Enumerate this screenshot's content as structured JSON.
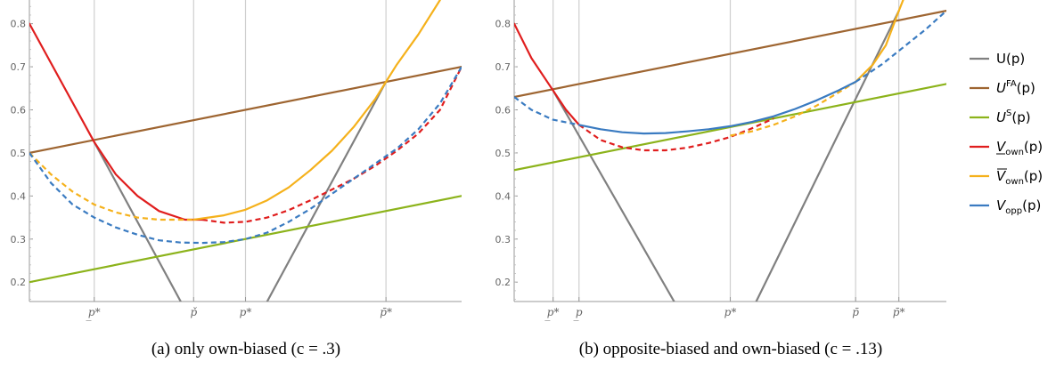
{
  "chart_data": [
    {
      "type": "line",
      "caption": "(a) only own-biased (c = .3)",
      "xlim": [
        0,
        1
      ],
      "ylim": [
        0.155,
        0.855
      ],
      "y_ticks": [
        0.2,
        0.3,
        0.4,
        0.5,
        0.6,
        0.7,
        0.8
      ],
      "x_ticks": [
        {
          "x": 0.15,
          "label": "p̲*"
        },
        {
          "x": 0.38,
          "label": "p̌"
        },
        {
          "x": 0.5,
          "label": "p*"
        },
        {
          "x": 0.825,
          "label": "p̄*"
        }
      ],
      "gridlines_x": [
        0.15,
        0.38,
        0.5,
        0.825
      ],
      "series": [
        {
          "name": "U(p)",
          "color": "#808080",
          "style": "solid",
          "segments": [
            [
              [
                0.15,
                0.525
              ],
              [
                0.35,
                0.155
              ]
            ],
            [
              [
                0.55,
                0.155
              ],
              [
                0.825,
                0.665
              ]
            ]
          ]
        },
        {
          "name": "U^FA(p)",
          "color": "#9e6531",
          "style": "solid",
          "segments": [
            [
              [
                0.0,
                0.5
              ],
              [
                1.0,
                0.7
              ]
            ]
          ]
        },
        {
          "name": "U^S(p)",
          "color": "#8cb31b",
          "style": "solid",
          "segments": [
            [
              [
                0.0,
                0.2
              ],
              [
                1.0,
                0.4
              ]
            ]
          ]
        },
        {
          "name": "V_own(p) lower",
          "color": "#e01e1e",
          "style": "solid",
          "segments": [
            [
              [
                0.0,
                0.8
              ],
              [
                0.15,
                0.525
              ],
              [
                0.2,
                0.45
              ],
              [
                0.25,
                0.4
              ],
              [
                0.3,
                0.365
              ],
              [
                0.36,
                0.345
              ],
              [
                0.4,
                0.345
              ]
            ]
          ]
        },
        {
          "name": "V_own(p) lower",
          "color": "#e01e1e",
          "style": "dashed",
          "segments": [
            [
              [
                0.4,
                0.345
              ],
              [
                0.45,
                0.338
              ],
              [
                0.5,
                0.34
              ],
              [
                0.55,
                0.35
              ],
              [
                0.6,
                0.367
              ],
              [
                0.65,
                0.39
              ],
              [
                0.7,
                0.415
              ],
              [
                0.75,
                0.44
              ],
              [
                0.8,
                0.47
              ],
              [
                0.85,
                0.505
              ],
              [
                0.9,
                0.545
              ],
              [
                0.95,
                0.6
              ],
              [
                1.0,
                0.7
              ]
            ]
          ]
        },
        {
          "name": "V_own(p) upper",
          "color": "#f5b11b",
          "style": "dashed",
          "segments": [
            [
              [
                0.0,
                0.5
              ],
              [
                0.05,
                0.45
              ],
              [
                0.1,
                0.41
              ],
              [
                0.15,
                0.38
              ],
              [
                0.2,
                0.362
              ],
              [
                0.25,
                0.35
              ],
              [
                0.3,
                0.345
              ],
              [
                0.38,
                0.345
              ]
            ]
          ]
        },
        {
          "name": "V_own(p) upper",
          "color": "#f5b11b",
          "style": "solid",
          "segments": [
            [
              [
                0.38,
                0.345
              ],
              [
                0.45,
                0.355
              ],
              [
                0.5,
                0.368
              ],
              [
                0.55,
                0.39
              ],
              [
                0.6,
                0.42
              ],
              [
                0.65,
                0.46
              ],
              [
                0.7,
                0.505
              ],
              [
                0.75,
                0.56
              ],
              [
                0.8,
                0.625
              ],
              [
                0.825,
                0.665
              ],
              [
                0.85,
                0.705
              ],
              [
                0.9,
                0.775
              ],
              [
                0.95,
                0.855
              ]
            ]
          ]
        },
        {
          "name": "V_opp(p)",
          "color": "#3a7bc1",
          "style": "dashed",
          "segments": [
            [
              [
                0.0,
                0.5
              ],
              [
                0.05,
                0.43
              ],
              [
                0.1,
                0.38
              ],
              [
                0.15,
                0.35
              ],
              [
                0.2,
                0.327
              ],
              [
                0.25,
                0.31
              ],
              [
                0.3,
                0.297
              ],
              [
                0.35,
                0.292
              ],
              [
                0.4,
                0.291
              ],
              [
                0.45,
                0.293
              ],
              [
                0.5,
                0.3
              ],
              [
                0.55,
                0.315
              ],
              [
                0.6,
                0.34
              ],
              [
                0.65,
                0.37
              ],
              [
                0.7,
                0.405
              ],
              [
                0.75,
                0.44
              ],
              [
                0.8,
                0.475
              ],
              [
                0.85,
                0.51
              ],
              [
                0.9,
                0.555
              ],
              [
                0.95,
                0.615
              ],
              [
                1.0,
                0.7
              ]
            ]
          ]
        }
      ]
    },
    {
      "type": "line",
      "caption": "(b) opposite-biased and own-biased (c = .13)",
      "xlim": [
        0,
        1
      ],
      "ylim": [
        0.155,
        0.855
      ],
      "y_ticks": [
        0.2,
        0.3,
        0.4,
        0.5,
        0.6,
        0.7,
        0.8
      ],
      "x_ticks": [
        {
          "x": 0.09,
          "label": "p̲*"
        },
        {
          "x": 0.15,
          "label": "p̲"
        },
        {
          "x": 0.5,
          "label": "p*"
        },
        {
          "x": 0.79,
          "label": "p̄"
        },
        {
          "x": 0.89,
          "label": "p̄*"
        }
      ],
      "gridlines_x": [
        0.09,
        0.15,
        0.5,
        0.79,
        0.89
      ],
      "series": [
        {
          "name": "U(p)",
          "color": "#808080",
          "style": "solid",
          "segments": [
            [
              [
                0.09,
                0.645
              ],
              [
                0.37,
                0.155
              ]
            ],
            [
              [
                0.56,
                0.155
              ],
              [
                0.89,
                0.83
              ]
            ]
          ]
        },
        {
          "name": "U^FA(p)",
          "color": "#9e6531",
          "style": "solid",
          "segments": [
            [
              [
                0.0,
                0.63
              ],
              [
                1.0,
                0.83
              ]
            ]
          ]
        },
        {
          "name": "U^S(p)",
          "color": "#8cb31b",
          "style": "solid",
          "segments": [
            [
              [
                0.0,
                0.46
              ],
              [
                1.0,
                0.66
              ]
            ]
          ]
        },
        {
          "name": "V_own(p) lower",
          "color": "#e01e1e",
          "style": "solid",
          "segments": [
            [
              [
                0.0,
                0.8
              ],
              [
                0.04,
                0.72
              ],
              [
                0.09,
                0.645
              ],
              [
                0.12,
                0.6
              ],
              [
                0.15,
                0.565
              ]
            ]
          ]
        },
        {
          "name": "V_own(p) lower",
          "color": "#e01e1e",
          "style": "dashed",
          "segments": [
            [
              [
                0.15,
                0.565
              ],
              [
                0.2,
                0.53
              ],
              [
                0.25,
                0.513
              ],
              [
                0.3,
                0.506
              ],
              [
                0.35,
                0.506
              ],
              [
                0.4,
                0.512
              ],
              [
                0.45,
                0.523
              ],
              [
                0.5,
                0.537
              ],
              [
                0.55,
                0.557
              ],
              [
                0.6,
                0.58
              ]
            ]
          ]
        },
        {
          "name": "V_own(p) upper",
          "color": "#f5b11b",
          "style": "dashed",
          "segments": [
            [
              [
                0.5,
                0.54
              ],
              [
                0.55,
                0.55
              ],
              [
                0.6,
                0.565
              ],
              [
                0.65,
                0.585
              ],
              [
                0.7,
                0.61
              ],
              [
                0.75,
                0.64
              ],
              [
                0.79,
                0.665
              ]
            ]
          ]
        },
        {
          "name": "V_own(p) upper",
          "color": "#f5b11b",
          "style": "solid",
          "segments": [
            [
              [
                0.79,
                0.665
              ],
              [
                0.83,
                0.705
              ],
              [
                0.86,
                0.75
              ],
              [
                0.89,
                0.83
              ],
              [
                0.9,
                0.855
              ]
            ]
          ]
        },
        {
          "name": "V_opp(p)",
          "color": "#3a7bc1",
          "style": "dashed",
          "segments": [
            [
              [
                0.0,
                0.63
              ],
              [
                0.04,
                0.6
              ],
              [
                0.09,
                0.577
              ],
              [
                0.15,
                0.565
              ]
            ]
          ]
        },
        {
          "name": "V_opp(p)",
          "color": "#3a7bc1",
          "style": "solid",
          "segments": [
            [
              [
                0.15,
                0.565
              ],
              [
                0.2,
                0.555
              ],
              [
                0.25,
                0.548
              ],
              [
                0.3,
                0.545
              ],
              [
                0.35,
                0.546
              ],
              [
                0.4,
                0.55
              ],
              [
                0.45,
                0.555
              ],
              [
                0.5,
                0.562
              ],
              [
                0.55,
                0.572
              ],
              [
                0.6,
                0.585
              ],
              [
                0.65,
                0.602
              ],
              [
                0.7,
                0.622
              ],
              [
                0.75,
                0.645
              ],
              [
                0.79,
                0.665
              ]
            ]
          ]
        },
        {
          "name": "V_opp(p)",
          "color": "#3a7bc1",
          "style": "dashed",
          "segments": [
            [
              [
                0.79,
                0.665
              ],
              [
                0.85,
                0.705
              ],
              [
                0.9,
                0.745
              ],
              [
                0.95,
                0.785
              ],
              [
                1.0,
                0.83
              ]
            ]
          ]
        }
      ]
    }
  ],
  "legend": {
    "placement": "right",
    "items": [
      {
        "main": "U",
        "sup": "",
        "sub": "",
        "arg": "(p)",
        "color": "#808080",
        "italic": false
      },
      {
        "main": "U",
        "sup": "FA",
        "sub": "",
        "arg": "(p)",
        "color": "#9e6531",
        "italic": true
      },
      {
        "main": "U",
        "sup": "S",
        "sub": "",
        "arg": "(p)",
        "color": "#8cb31b",
        "italic": true
      },
      {
        "main": "V",
        "sup": "",
        "sub": "own",
        "arg": "(p)",
        "color": "#e01e1e",
        "italic": true,
        "underline": true
      },
      {
        "main": "V",
        "sup": "",
        "sub": "own",
        "arg": "(p)",
        "color": "#f5b11b",
        "italic": true,
        "overline": true
      },
      {
        "main": "V",
        "sup": "",
        "sub": "opp",
        "arg": "(p)",
        "color": "#3a7bc1",
        "italic": true
      }
    ]
  }
}
